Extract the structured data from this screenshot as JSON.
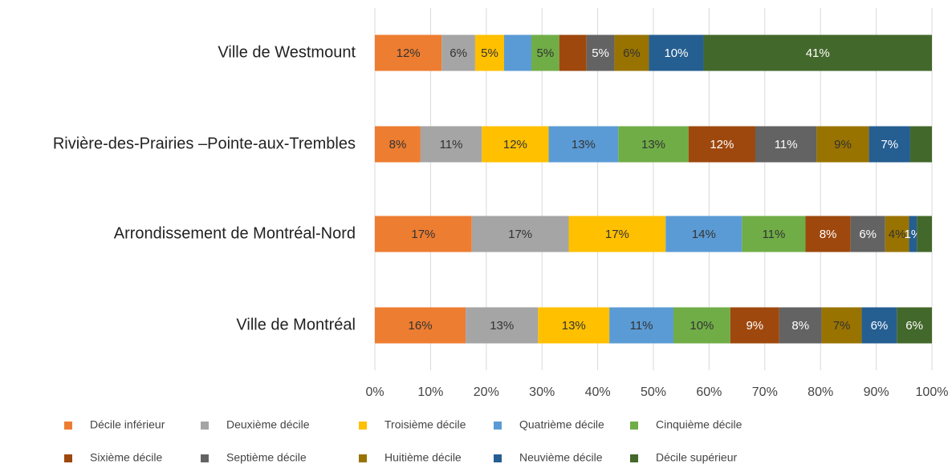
{
  "chart_data": {
    "type": "stacked_bar_horizontal",
    "categories": [
      "Ville de Westmount",
      "Rivière-des-Prairies –Pointe-aux-Trembles",
      "Arrondissement de Montréal-Nord",
      "Ville de Montréal"
    ],
    "xlim": [
      0,
      100
    ],
    "xticks": [
      {
        "value": 0,
        "label": "0%"
      },
      {
        "value": 10,
        "label": "10%"
      },
      {
        "value": 20,
        "label": "20%"
      },
      {
        "value": 30,
        "label": "30%"
      },
      {
        "value": 40,
        "label": "40%"
      },
      {
        "value": 50,
        "label": "50%"
      },
      {
        "value": 60,
        "label": "60%"
      },
      {
        "value": 70,
        "label": "70%"
      },
      {
        "value": 80,
        "label": "80%"
      },
      {
        "value": 90,
        "label": "90%"
      },
      {
        "value": 100,
        "label": "100%"
      }
    ],
    "grid": true,
    "series": [
      {
        "name": "Décile inférieur",
        "color": "#ED7D31",
        "values": [
          12.0,
          8.2,
          17.4,
          16.3
        ],
        "value_labels": [
          "12%",
          "8%",
          "17%",
          "16%"
        ]
      },
      {
        "name": "Deuxième décile",
        "color": "#A5A5A5",
        "values": [
          6.0,
          11.0,
          17.4,
          13.0
        ],
        "value_labels": [
          "6%",
          "11%",
          "17%",
          "13%"
        ]
      },
      {
        "name": "Troisième décile",
        "color": "#FFC000",
        "values": [
          5.2,
          12.0,
          17.4,
          12.8
        ],
        "value_labels": [
          "5%",
          "12%",
          "17%",
          "13%"
        ]
      },
      {
        "name": "Quatrième décile",
        "color": "#5B9BD5",
        "values": [
          4.9,
          12.5,
          13.7,
          11.5
        ],
        "value_labels": [
          null,
          "13%",
          "14%",
          "11%"
        ]
      },
      {
        "name": "Cinquième décile",
        "color": "#70AD47",
        "values": [
          5.0,
          12.6,
          11.4,
          10.2
        ],
        "value_labels": [
          "5%",
          "13%",
          "11%",
          "10%"
        ]
      },
      {
        "name": "Sixième décile",
        "color": "#9E480E",
        "values": [
          4.9,
          12.0,
          8.1,
          8.8
        ],
        "value_labels": [
          null,
          "12%",
          "8%",
          "9%"
        ]
      },
      {
        "name": "Septième décile",
        "color": "#636363",
        "values": [
          5.0,
          11.0,
          6.2,
          7.6
        ],
        "value_labels": [
          "5%",
          "11%",
          "6%",
          "8%"
        ]
      },
      {
        "name": "Huitième décile",
        "color": "#997300",
        "values": [
          6.2,
          9.4,
          4.3,
          7.2
        ],
        "value_labels": [
          "6%",
          "9%",
          "4%",
          "7%"
        ]
      },
      {
        "name": "Neuvième décile",
        "color": "#255E91",
        "values": [
          9.8,
          7.4,
          1.4,
          6.3
        ],
        "value_labels": [
          "10%",
          "7%",
          "1%",
          "6%"
        ]
      },
      {
        "name": "Décile supérieur",
        "color": "#43682B",
        "values": [
          41.0,
          3.9,
          2.7,
          6.3
        ],
        "value_labels": [
          "41%",
          null,
          null,
          "6%"
        ]
      }
    ]
  }
}
